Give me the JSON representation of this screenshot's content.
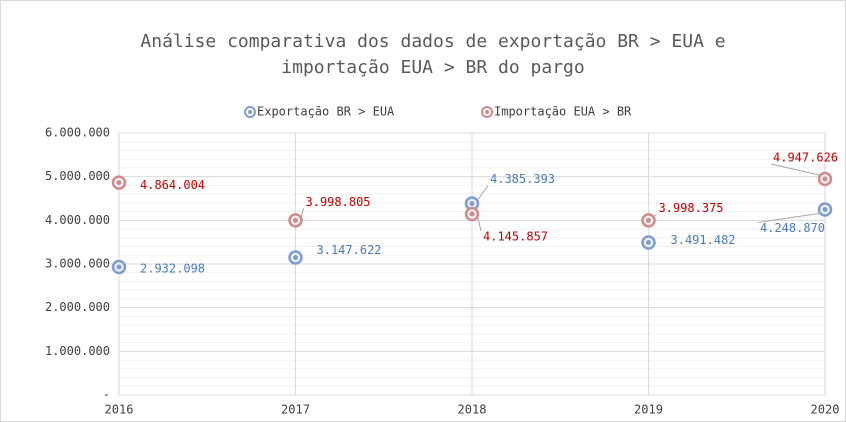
{
  "chart_data": {
    "type": "scatter",
    "title": [
      "Análise comparativa dos dados de exportação BR > EUA e",
      "importação EUA > BR do pargo"
    ],
    "x": [
      2016,
      2017,
      2018,
      2019,
      2020
    ],
    "xlim": [
      2016,
      2020
    ],
    "xticks": [
      2016,
      2017,
      2018,
      2019,
      2020
    ],
    "ylim": [
      0,
      6000000
    ],
    "yticks": [
      {
        "value": 0,
        "label": "-"
      },
      {
        "value": 1000000,
        "label": "1.000.000"
      },
      {
        "value": 2000000,
        "label": "2.000.000"
      },
      {
        "value": 3000000,
        "label": "3.000.000"
      },
      {
        "value": 4000000,
        "label": "4.000.000"
      },
      {
        "value": 5000000,
        "label": "5.000.000"
      },
      {
        "value": 6000000,
        "label": "6.000.000"
      }
    ],
    "grid": true,
    "legend": "top",
    "series": [
      {
        "name": "Exportação BR > EUA",
        "color": "#7f9ccf",
        "label_color": "#4a7ab8",
        "values": [
          2932098,
          3147622,
          4385393,
          3491482,
          4248870
        ],
        "value_labels": [
          "2.932.098",
          "3.147.622",
          "4.385.393",
          "3.491.482",
          "4.248.870"
        ]
      },
      {
        "name": "Importação EUA > BR",
        "color": "#d08a8a",
        "label_color": "#c00000",
        "values": [
          4864004,
          3998805,
          4145857,
          3998375,
          4947626
        ],
        "value_labels": [
          "4.864.004",
          "3.998.805",
          "4.145.857",
          "3.998.375",
          "4.947.626"
        ]
      }
    ]
  }
}
